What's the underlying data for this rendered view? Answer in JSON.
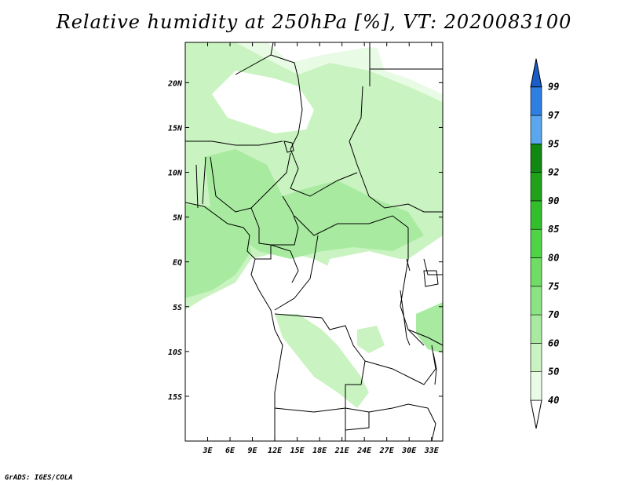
{
  "title": "Relative humidity at 250hPa [%], VT: 2020083100",
  "credit": "GrADS: IGES/COLA",
  "map": {
    "lat_labels": [
      "20N",
      "15N",
      "10N",
      "5N",
      "EQ",
      "5S",
      "10S",
      "15S"
    ],
    "lat_values": [
      20,
      15,
      10,
      5,
      0,
      -5,
      -10,
      -15
    ],
    "lon_labels": [
      "3E",
      "6E",
      "9E",
      "12E",
      "15E",
      "18E",
      "21E",
      "24E",
      "27E",
      "30E",
      "33E"
    ],
    "lon_values": [
      3,
      6,
      9,
      12,
      15,
      18,
      21,
      24,
      27,
      30,
      33
    ],
    "extent": {
      "lon_min": 0,
      "lon_max": 34.5,
      "lat_min": -20,
      "lat_max": 24.5
    }
  },
  "colorbar": {
    "levels": [
      "40",
      "50",
      "60",
      "70",
      "75",
      "80",
      "85",
      "90",
      "92",
      "95",
      "97",
      "99"
    ],
    "colors": [
      "#ffffff",
      "#e8fbe4",
      "#c9f3c0",
      "#a8eba0",
      "#8be483",
      "#6fdc65",
      "#4fd447",
      "#33be2c",
      "#1fa21a",
      "#108812",
      "#5aa6ef",
      "#2e7fe0",
      "#1a5cc8"
    ]
  }
}
